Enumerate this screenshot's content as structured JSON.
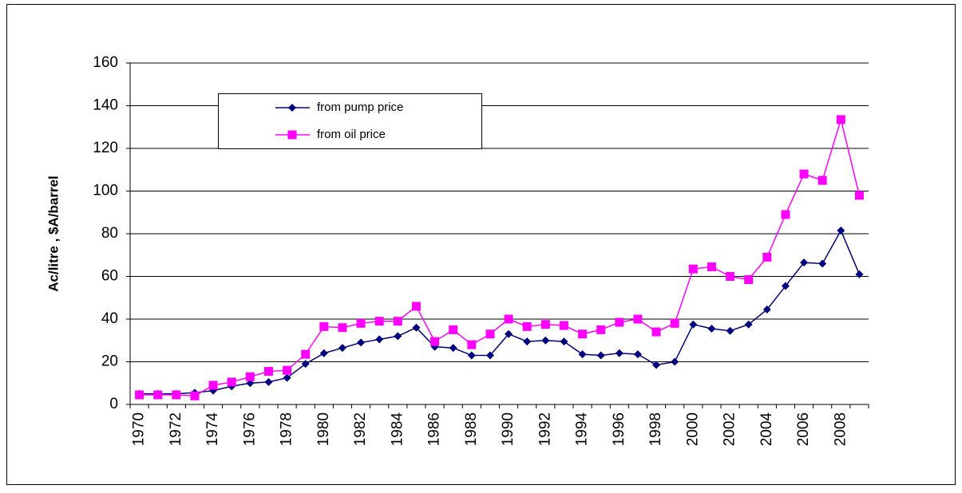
{
  "chart_data": {
    "type": "line",
    "y_label": "Ac/litre , $A/barrel",
    "categories": [
      "1970",
      null,
      "1972",
      null,
      "1974",
      null,
      "1976",
      null,
      "1978",
      null,
      "1980",
      null,
      "1982",
      null,
      "1984",
      null,
      "1986",
      null,
      "1988",
      null,
      "1990",
      null,
      "1992",
      null,
      "1994",
      null,
      "1996",
      null,
      "1998",
      null,
      "2000",
      null,
      "2002",
      null,
      "2004",
      null,
      "2006",
      null,
      "2008",
      null
    ],
    "series": [
      {
        "name": "from pump price",
        "color": "#000080",
        "marker": "diamond",
        "values": [
          5,
          5,
          5,
          5.5,
          6.5,
          8.5,
          10,
          10.5,
          12.5,
          19,
          24,
          26.5,
          29,
          30.5,
          32,
          36,
          27,
          26.5,
          23,
          23,
          33,
          29.5,
          30,
          29.5,
          23.5,
          23,
          24,
          23.5,
          18.5,
          20,
          37.5,
          35.5,
          34.5,
          37.5,
          44.5,
          55.5,
          66.5,
          66,
          81.5,
          61
        ]
      },
      {
        "name": "from oil price",
        "color": "#ff00ff",
        "marker": "square",
        "values": [
          4.5,
          4.5,
          4.5,
          4,
          9,
          10.5,
          13,
          15.5,
          16,
          23.5,
          36.5,
          36,
          38,
          39,
          39,
          46,
          29.5,
          35,
          28,
          33,
          40,
          36.5,
          37.5,
          37,
          33,
          35,
          38.5,
          40,
          34,
          38,
          63.5,
          64.5,
          60,
          58.5,
          69,
          89,
          108,
          105,
          133.5,
          98
        ]
      }
    ],
    "ylim": [
      0,
      160
    ],
    "yticks": [
      0,
      20,
      40,
      60,
      80,
      100,
      120,
      140,
      160
    ],
    "grid": true,
    "legend": "upper-left"
  }
}
